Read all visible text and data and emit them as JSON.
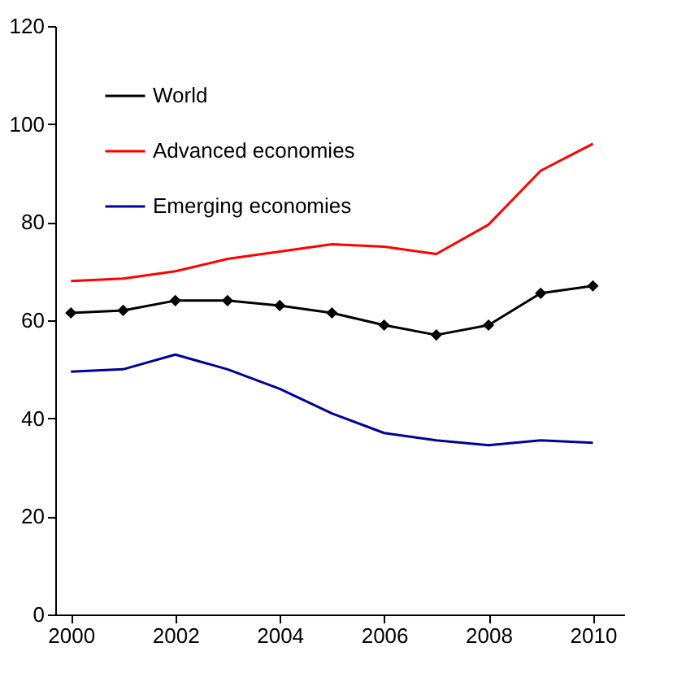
{
  "chart_data": {
    "type": "line",
    "x": [
      2000,
      2001,
      2002,
      2003,
      2004,
      2005,
      2006,
      2007,
      2008,
      2009,
      2010
    ],
    "series": [
      {
        "name": "World",
        "color": "#000000",
        "marker": "diamond",
        "values": [
          61.5,
          62,
          64,
          64,
          63,
          61.5,
          59,
          57,
          59,
          65.5,
          67
        ]
      },
      {
        "name": "Advanced economies",
        "color": "#ff0000",
        "marker": "none",
        "values": [
          68,
          68.5,
          70,
          72.5,
          74,
          75.5,
          75,
          73.5,
          79.5,
          90.5,
          96
        ]
      },
      {
        "name": "Emerging economies",
        "color": "#000099",
        "marker": "none",
        "values": [
          49.5,
          50,
          53,
          50,
          46,
          41,
          37,
          35.5,
          34.5,
          35.5,
          35
        ]
      }
    ],
    "xlim": [
      1999.7,
      2010.6
    ],
    "xticks": [
      2000,
      2002,
      2004,
      2006,
      2008,
      2010
    ],
    "ylim": [
      0,
      120
    ],
    "yticks": [
      0,
      20,
      40,
      60,
      80,
      100,
      120
    ],
    "grid": false,
    "legend": "top left",
    "line_style": "solid"
  }
}
